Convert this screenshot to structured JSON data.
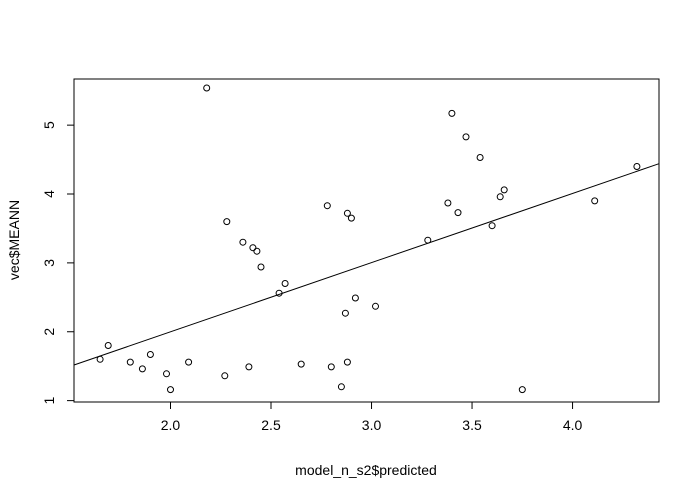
{
  "chart_data": {
    "type": "scatter",
    "title": "",
    "xlabel": "model_n_s2$predicted",
    "ylabel": "vec$MEANN",
    "xlim": [
      1.52,
      4.43
    ],
    "ylim": [
      0.98,
      5.67
    ],
    "x_ticks": [
      2.0,
      2.5,
      3.0,
      3.5,
      4.0
    ],
    "x_tick_labels": [
      "2.0",
      "2.5",
      "3.0",
      "3.5",
      "4.0"
    ],
    "y_ticks": [
      1,
      2,
      3,
      4,
      5
    ],
    "y_tick_labels": [
      "1",
      "2",
      "3",
      "4",
      "5"
    ],
    "grid": false,
    "marker": "open-circle",
    "series": [
      {
        "points": [
          [
            1.65,
            1.6
          ],
          [
            1.69,
            1.8
          ],
          [
            1.8,
            1.56
          ],
          [
            1.86,
            1.46
          ],
          [
            1.9,
            1.67
          ],
          [
            1.98,
            1.39
          ],
          [
            2.0,
            1.16
          ],
          [
            2.09,
            1.56
          ],
          [
            2.18,
            5.54
          ],
          [
            2.27,
            1.36
          ],
          [
            2.28,
            3.6
          ],
          [
            2.36,
            3.3
          ],
          [
            2.39,
            1.49
          ],
          [
            2.41,
            3.22
          ],
          [
            2.43,
            3.17
          ],
          [
            2.45,
            2.94
          ],
          [
            2.54,
            2.56
          ],
          [
            2.57,
            2.7
          ],
          [
            2.65,
            1.53
          ],
          [
            2.78,
            3.83
          ],
          [
            2.8,
            1.49
          ],
          [
            2.85,
            1.2
          ],
          [
            2.87,
            2.27
          ],
          [
            2.88,
            1.56
          ],
          [
            2.88,
            3.72
          ],
          [
            2.9,
            3.65
          ],
          [
            2.92,
            2.49
          ],
          [
            3.02,
            2.37
          ],
          [
            3.28,
            3.33
          ],
          [
            3.38,
            3.87
          ],
          [
            3.4,
            5.17
          ],
          [
            3.43,
            3.73
          ],
          [
            3.47,
            4.83
          ],
          [
            3.54,
            4.53
          ],
          [
            3.6,
            3.54
          ],
          [
            3.64,
            3.96
          ],
          [
            3.66,
            4.06
          ],
          [
            3.75,
            1.16
          ],
          [
            4.11,
            3.9
          ],
          [
            4.32,
            4.4
          ]
        ]
      }
    ],
    "fit_line": {
      "type": "linear",
      "intercept": -0.0096,
      "slope": 1.0045
    }
  }
}
